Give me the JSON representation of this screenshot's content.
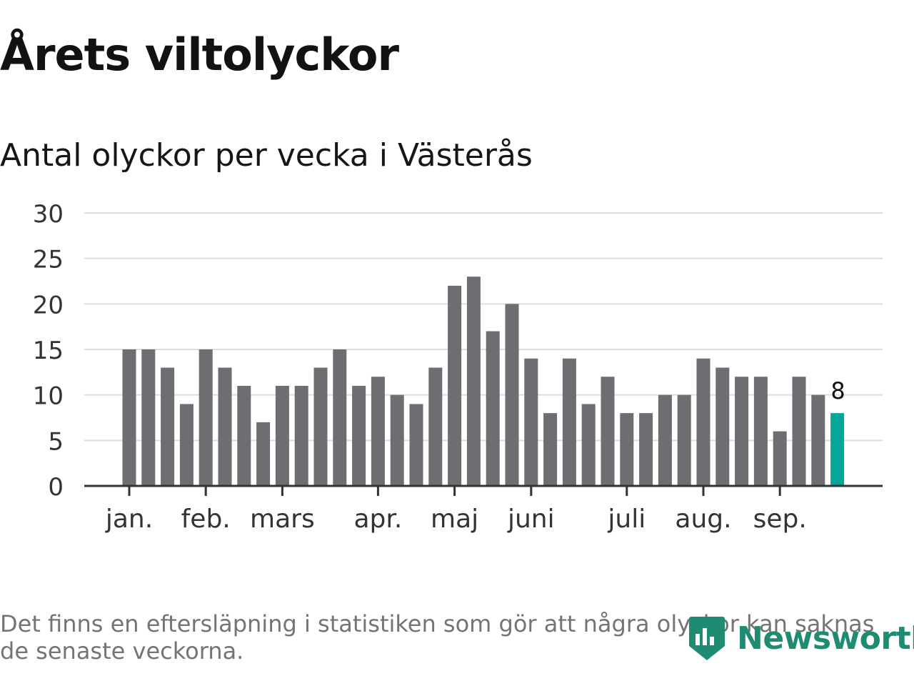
{
  "header": {
    "title": "Årets viltolyckor",
    "subtitle": "Antal olyckor per vecka i Västerås"
  },
  "footnote": "Det finns en eftersläpning i statistiken som gör att några olyckor kan saknas de senaste veckorna.",
  "brand": {
    "name": "Newsworthy",
    "icon": "newsworthy-logo-icon"
  },
  "colors": {
    "bar": "#6e6d72",
    "highlight": "#03a699",
    "grid": "#dddddd",
    "axis": "#333333",
    "brand": "#1f8b73"
  },
  "chart_data": {
    "type": "bar",
    "title": "Antal olyckor per vecka i Västerås",
    "xlabel": "",
    "ylabel": "",
    "ylim": [
      0,
      30
    ],
    "yticks": [
      0,
      5,
      10,
      15,
      20,
      25,
      30
    ],
    "grid": true,
    "weeks": [
      1,
      2,
      3,
      4,
      5,
      6,
      7,
      8,
      9,
      10,
      11,
      12,
      13,
      14,
      15,
      16,
      17,
      18,
      19,
      20,
      21,
      22,
      23,
      24,
      25,
      26,
      27,
      28,
      29,
      30,
      31,
      32,
      33,
      34,
      35,
      36,
      37,
      38
    ],
    "values": [
      15,
      15,
      13,
      9,
      15,
      13,
      11,
      7,
      11,
      11,
      13,
      15,
      11,
      12,
      10,
      9,
      13,
      22,
      23,
      17,
      20,
      14,
      8,
      14,
      9,
      12,
      8,
      8,
      10,
      10,
      14,
      13,
      12,
      12,
      6,
      12,
      10,
      8
    ],
    "highlight_index": 37,
    "data_label": "8",
    "month_labels": [
      {
        "label": "jan.",
        "week": 1
      },
      {
        "label": "feb.",
        "week": 5
      },
      {
        "label": "mars",
        "week": 9
      },
      {
        "label": "apr.",
        "week": 14
      },
      {
        "label": "maj",
        "week": 18
      },
      {
        "label": "juni",
        "week": 22
      },
      {
        "label": "juli",
        "week": 27
      },
      {
        "label": "aug.",
        "week": 31
      },
      {
        "label": "sep.",
        "week": 35
      }
    ]
  }
}
